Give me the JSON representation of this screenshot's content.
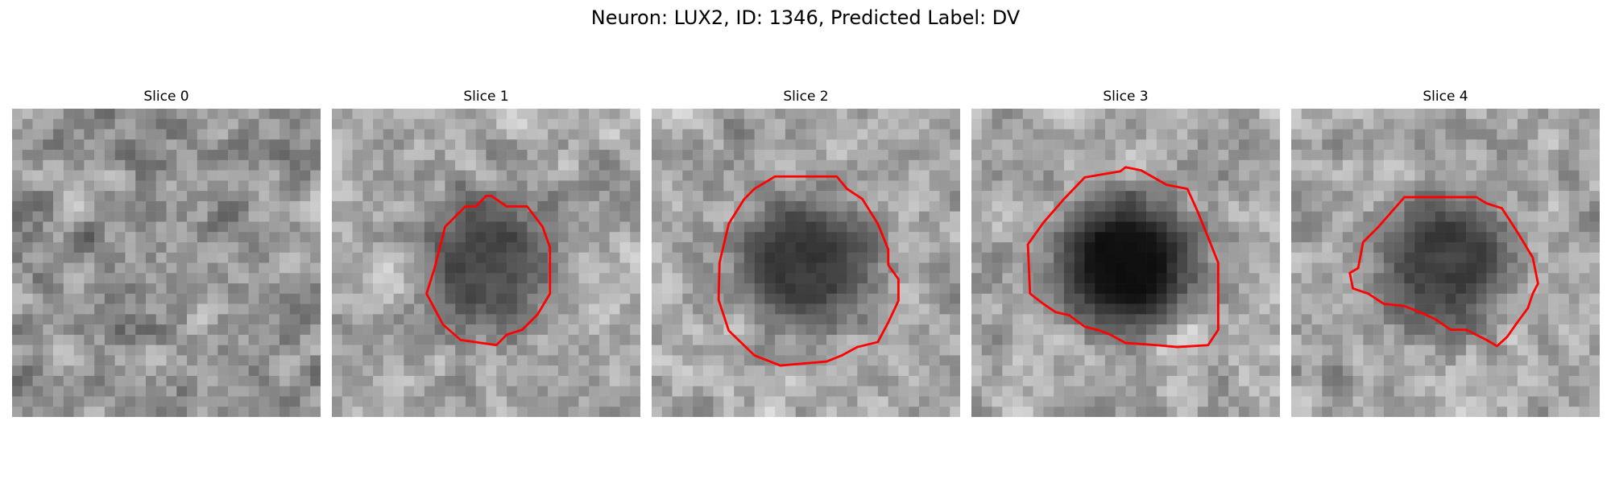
{
  "figure": {
    "title": "Neuron: LUX2, ID: 1346, Predicted Label: DV"
  },
  "outline_color": "#ff0000",
  "panels": [
    {
      "title": "Slice 0",
      "has_outline": false,
      "cell_dark": 0.0,
      "outline": []
    },
    {
      "title": "Slice 1",
      "has_outline": true,
      "cell_dark": 0.55,
      "outline": [
        [
          0.517,
          0.283
        ],
        [
          0.5,
          0.283
        ],
        [
          0.467,
          0.317
        ],
        [
          0.433,
          0.317
        ],
        [
          0.4,
          0.35
        ],
        [
          0.367,
          0.383
        ],
        [
          0.35,
          0.45
        ],
        [
          0.333,
          0.517
        ],
        [
          0.307,
          0.6
        ],
        [
          0.36,
          0.7
        ],
        [
          0.417,
          0.75
        ],
        [
          0.533,
          0.767
        ],
        [
          0.567,
          0.733
        ],
        [
          0.617,
          0.717
        ],
        [
          0.667,
          0.667
        ],
        [
          0.707,
          0.6
        ],
        [
          0.707,
          0.45
        ],
        [
          0.683,
          0.383
        ],
        [
          0.633,
          0.317
        ],
        [
          0.6,
          0.317
        ],
        [
          0.567,
          0.317
        ]
      ]
    },
    {
      "title": "Slice 2",
      "has_outline": true,
      "cell_dark": 0.65,
      "outline": [
        [
          0.333,
          0.26
        ],
        [
          0.4,
          0.22
        ],
        [
          0.6,
          0.22
        ],
        [
          0.633,
          0.26
        ],
        [
          0.683,
          0.293
        ],
        [
          0.733,
          0.373
        ],
        [
          0.767,
          0.457
        ],
        [
          0.767,
          0.507
        ],
        [
          0.8,
          0.553
        ],
        [
          0.8,
          0.623
        ],
        [
          0.767,
          0.693
        ],
        [
          0.733,
          0.757
        ],
        [
          0.667,
          0.773
        ],
        [
          0.617,
          0.8
        ],
        [
          0.567,
          0.82
        ],
        [
          0.417,
          0.833
        ],
        [
          0.333,
          0.8
        ],
        [
          0.25,
          0.72
        ],
        [
          0.217,
          0.62
        ],
        [
          0.22,
          0.5
        ],
        [
          0.25,
          0.373
        ],
        [
          0.3,
          0.293
        ]
      ]
    },
    {
      "title": "Slice 3",
      "has_outline": true,
      "cell_dark": 0.9,
      "outline": [
        [
          0.5,
          0.19
        ],
        [
          0.483,
          0.203
        ],
        [
          0.367,
          0.223
        ],
        [
          0.3,
          0.293
        ],
        [
          0.233,
          0.37
        ],
        [
          0.183,
          0.44
        ],
        [
          0.19,
          0.6
        ],
        [
          0.233,
          0.633
        ],
        [
          0.273,
          0.66
        ],
        [
          0.317,
          0.67
        ],
        [
          0.367,
          0.707
        ],
        [
          0.417,
          0.72
        ],
        [
          0.45,
          0.733
        ],
        [
          0.5,
          0.76
        ],
        [
          0.6,
          0.767
        ],
        [
          0.667,
          0.773
        ],
        [
          0.767,
          0.767
        ],
        [
          0.8,
          0.717
        ],
        [
          0.8,
          0.5
        ],
        [
          0.767,
          0.417
        ],
        [
          0.733,
          0.333
        ],
        [
          0.7,
          0.26
        ],
        [
          0.633,
          0.247
        ],
        [
          0.55,
          0.2
        ]
      ]
    },
    {
      "title": "Slice 4",
      "has_outline": true,
      "cell_dark": 0.6,
      "outline": [
        [
          0.367,
          0.287
        ],
        [
          0.6,
          0.287
        ],
        [
          0.633,
          0.307
        ],
        [
          0.683,
          0.323
        ],
        [
          0.733,
          0.4
        ],
        [
          0.783,
          0.483
        ],
        [
          0.8,
          0.567
        ],
        [
          0.783,
          0.6
        ],
        [
          0.767,
          0.647
        ],
        [
          0.733,
          0.693
        ],
        [
          0.7,
          0.74
        ],
        [
          0.667,
          0.77
        ],
        [
          0.633,
          0.75
        ],
        [
          0.567,
          0.717
        ],
        [
          0.517,
          0.717
        ],
        [
          0.467,
          0.683
        ],
        [
          0.433,
          0.667
        ],
        [
          0.367,
          0.64
        ],
        [
          0.3,
          0.633
        ],
        [
          0.25,
          0.6
        ],
        [
          0.2,
          0.583
        ],
        [
          0.19,
          0.533
        ],
        [
          0.217,
          0.517
        ],
        [
          0.233,
          0.433
        ],
        [
          0.283,
          0.383
        ]
      ]
    }
  ]
}
